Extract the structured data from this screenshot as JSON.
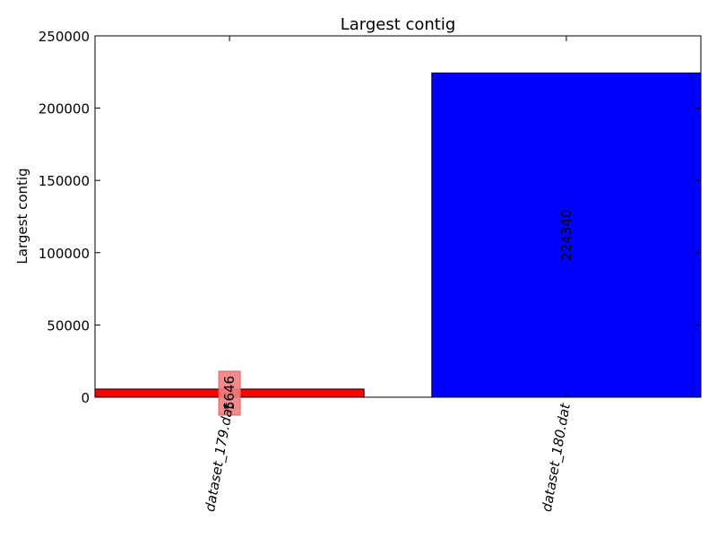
{
  "chart_data": {
    "type": "bar",
    "title": "Largest contig",
    "xlabel": "",
    "ylabel": "Largest contig",
    "categories": [
      "dataset_179.dat",
      "dataset_180.dat"
    ],
    "values": [
      5646,
      224340
    ],
    "value_labels": [
      "5646",
      "224340"
    ],
    "bar_colors": [
      "#ff0000",
      "#0000ff"
    ],
    "ylim": [
      0,
      250000
    ],
    "yticks": [
      0,
      50000,
      100000,
      150000,
      200000,
      250000
    ],
    "ytick_labels": [
      "0",
      "50000",
      "100000",
      "150000",
      "200000",
      "250000"
    ],
    "grid": false,
    "label_highlight_color": "#f08080"
  }
}
